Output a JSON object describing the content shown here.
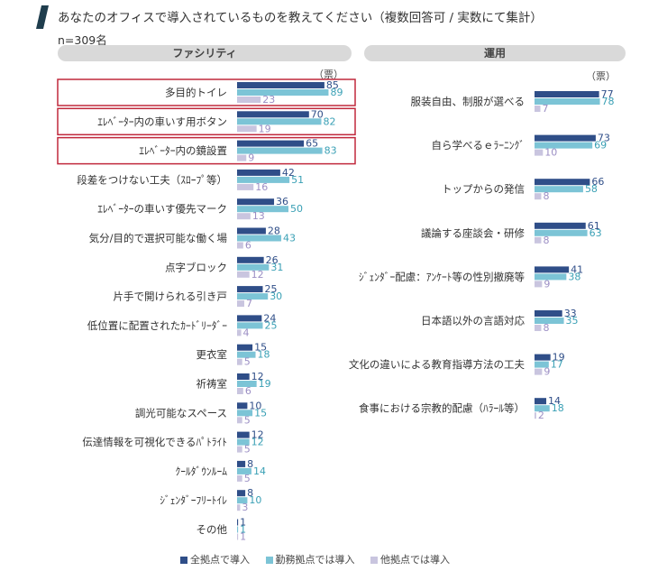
{
  "header": {
    "title": "あなたのオフィスで導入されているものを教えてください（複数回答可 / 実数にて集計）",
    "sample": "n=309名"
  },
  "colors": {
    "accent": "#1f3d4d",
    "series": [
      "#2f4e88",
      "#7cc4d6",
      "#c9c5df"
    ],
    "value_text": [
      "#2f4e88",
      "#3aa0b5",
      "#9b8ec4"
    ],
    "highlight_border": "#c0283c"
  },
  "legend": [
    "全拠点で導入",
    "勤務拠点では導入",
    "他拠点では導入"
  ],
  "chart_data": [
    {
      "type": "bar",
      "orientation": "horizontal",
      "title": "ファシリティ",
      "unit": "（票）",
      "categories": [
        "多目的トイレ",
        "ｴﾚﾍﾞｰﾀｰ内の車いす用ボタン",
        "ｴﾚﾍﾞｰﾀｰ内の鏡設置",
        "段差をつけない工夫（ｽﾛｰﾌﾟ等）",
        "ｴﾚﾍﾞｰﾀｰの車いす優先マーク",
        "気分/目的で選択可能な働く場",
        "点字ブロック",
        "片手で開けられる引き戸",
        "低位置に配置されたｶｰﾄﾞﾘｰﾀﾞｰ",
        "更衣室",
        "祈祷室",
        "調光可能なスペース",
        "伝達情報を可視化できるﾊﾟﾄﾗｲﾄ",
        "ｸｰﾙﾀﾞｳﾝﾙｰﾑ",
        "ｼﾞｪﾝﾀﾞｰﾌﾘｰﾄｲﾚ",
        "その他"
      ],
      "series": [
        {
          "name": "全拠点で導入",
          "values": [
            85,
            70,
            65,
            42,
            36,
            28,
            26,
            25,
            24,
            15,
            12,
            10,
            12,
            8,
            8,
            1
          ]
        },
        {
          "name": "勤務拠点では導入",
          "values": [
            89,
            82,
            83,
            51,
            50,
            43,
            31,
            30,
            25,
            18,
            19,
            15,
            12,
            14,
            10,
            1
          ]
        },
        {
          "name": "他拠点では導入",
          "values": [
            23,
            19,
            9,
            16,
            13,
            6,
            12,
            7,
            4,
            5,
            6,
            5,
            5,
            5,
            3,
            1
          ]
        }
      ],
      "highlighted": [
        "多目的トイレ",
        "ｴﾚﾍﾞｰﾀｰ内の車いす用ボタン",
        "ｴﾚﾍﾞｰﾀｰ内の鏡設置"
      ]
    },
    {
      "type": "bar",
      "orientation": "horizontal",
      "title": "運用",
      "unit": "（票）",
      "categories": [
        "服装自由、制服が選べる",
        "自ら学べるｅﾗｰﾆﾝｸﾞ",
        "トップからの発信",
        "議論する座談会・研修",
        "ｼﾞｪﾝﾀﾞｰ配慮：ｱﾝｹｰﾄ等の性別撤廃等",
        "日本語以外の言語対応",
        "文化の違いによる教育指導方法の工夫",
        "食事における宗教的配慮（ﾊﾗｰﾙ等）"
      ],
      "series": [
        {
          "name": "全拠点で導入",
          "values": [
            77,
            73,
            66,
            61,
            41,
            33,
            19,
            14
          ]
        },
        {
          "name": "勤務拠点では導入",
          "values": [
            78,
            69,
            58,
            63,
            38,
            35,
            17,
            18
          ]
        },
        {
          "name": "他拠点では導入",
          "values": [
            7,
            10,
            8,
            8,
            9,
            8,
            9,
            2
          ]
        }
      ]
    }
  ]
}
